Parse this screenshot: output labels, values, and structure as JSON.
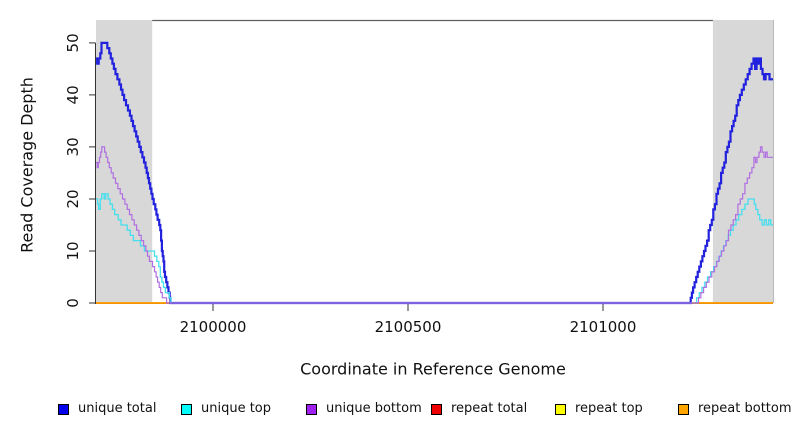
{
  "page": {
    "background": "#ffffff"
  },
  "chart_data": {
    "type": "line",
    "title": "",
    "xlabel": "Coordinate in Reference Genome",
    "ylabel": "Read Coverage Depth",
    "xlim": [
      2099700,
      2101436
    ],
    "ylim": [
      0,
      54.4
    ],
    "x_ticks": [
      2100000,
      2100500,
      2101000
    ],
    "x_tick_labels": [
      "2100000",
      "2100500",
      "2101000"
    ],
    "y_ticks": [
      0,
      10,
      20,
      30,
      40,
      50
    ],
    "y_tick_labels": [
      "0",
      "10",
      "20",
      "30",
      "40",
      "50"
    ],
    "grid": false,
    "legend_position": "bottom",
    "axis_color": "#333333",
    "frame_color": "#5f5f5f",
    "shade_color": "#d8d8d8",
    "shaded_regions": [
      {
        "x0": 2099700,
        "x1": 2099844
      },
      {
        "x0": 2101282,
        "x1": 2101436
      }
    ],
    "series": [
      {
        "name": "unique total",
        "color": "#2121de",
        "swatch": "#0000ee",
        "width": 2.2,
        "points": [
          [
            2099700,
            47
          ],
          [
            2099703,
            46
          ],
          [
            2099707,
            47
          ],
          [
            2099711,
            48
          ],
          [
            2099714,
            50
          ],
          [
            2099726,
            50
          ],
          [
            2099729,
            49
          ],
          [
            2099734,
            48
          ],
          [
            2099738,
            47
          ],
          [
            2099742,
            46
          ],
          [
            2099746,
            45
          ],
          [
            2099750,
            44
          ],
          [
            2099755,
            43
          ],
          [
            2099760,
            42
          ],
          [
            2099764,
            41
          ],
          [
            2099768,
            40
          ],
          [
            2099772,
            39
          ],
          [
            2099777,
            38
          ],
          [
            2099782,
            37
          ],
          [
            2099787,
            36
          ],
          [
            2099791,
            35
          ],
          [
            2099795,
            34
          ],
          [
            2099799,
            33
          ],
          [
            2099803,
            32
          ],
          [
            2099807,
            31
          ],
          [
            2099811,
            30
          ],
          [
            2099815,
            29
          ],
          [
            2099819,
            28
          ],
          [
            2099823,
            27
          ],
          [
            2099827,
            26
          ],
          [
            2099830,
            25
          ],
          [
            2099833,
            24
          ],
          [
            2099836,
            23
          ],
          [
            2099839,
            22
          ],
          [
            2099842,
            21
          ],
          [
            2099845,
            20
          ],
          [
            2099848,
            19
          ],
          [
            2099852,
            18
          ],
          [
            2099855,
            17
          ],
          [
            2099858,
            16
          ],
          [
            2099862,
            15
          ],
          [
            2099865,
            14
          ],
          [
            2099867,
            12
          ],
          [
            2099869,
            10
          ],
          [
            2099871,
            9
          ],
          [
            2099873,
            8
          ],
          [
            2099875,
            6
          ],
          [
            2099877,
            5
          ],
          [
            2099880,
            4
          ],
          [
            2099883,
            3
          ],
          [
            2099886,
            2
          ],
          [
            2099889,
            1
          ],
          [
            2099891,
            0
          ],
          [
            2101222,
            0
          ],
          [
            2101225,
            1
          ],
          [
            2101228,
            2
          ],
          [
            2101231,
            3
          ],
          [
            2101235,
            4
          ],
          [
            2101239,
            5
          ],
          [
            2101243,
            6
          ],
          [
            2101247,
            7
          ],
          [
            2101251,
            8
          ],
          [
            2101255,
            9
          ],
          [
            2101259,
            10
          ],
          [
            2101263,
            11
          ],
          [
            2101267,
            12
          ],
          [
            2101271,
            14
          ],
          [
            2101275,
            15
          ],
          [
            2101279,
            16
          ],
          [
            2101283,
            18
          ],
          [
            2101287,
            19
          ],
          [
            2101291,
            21
          ],
          [
            2101295,
            22
          ],
          [
            2101299,
            23
          ],
          [
            2101303,
            25
          ],
          [
            2101307,
            26
          ],
          [
            2101311,
            27
          ],
          [
            2101315,
            29
          ],
          [
            2101319,
            30
          ],
          [
            2101323,
            31
          ],
          [
            2101327,
            33
          ],
          [
            2101331,
            34
          ],
          [
            2101335,
            35
          ],
          [
            2101339,
            36
          ],
          [
            2101343,
            38
          ],
          [
            2101347,
            39
          ],
          [
            2101351,
            40
          ],
          [
            2101356,
            41
          ],
          [
            2101361,
            42
          ],
          [
            2101366,
            43
          ],
          [
            2101371,
            44
          ],
          [
            2101376,
            45
          ],
          [
            2101381,
            46
          ],
          [
            2101386,
            47
          ],
          [
            2101390,
            45
          ],
          [
            2101394,
            47
          ],
          [
            2101398,
            46
          ],
          [
            2101401,
            47
          ],
          [
            2101405,
            45
          ],
          [
            2101409,
            44
          ],
          [
            2101413,
            43
          ],
          [
            2101417,
            44
          ],
          [
            2101423,
            44
          ],
          [
            2101427,
            43
          ],
          [
            2101436,
            43
          ]
        ]
      },
      {
        "name": "unique top",
        "color": "#45dfee",
        "swatch": "#00ffff",
        "width": 1.3,
        "points": [
          [
            2099700,
            20
          ],
          [
            2099704,
            19
          ],
          [
            2099707,
            18
          ],
          [
            2099711,
            20
          ],
          [
            2099715,
            21
          ],
          [
            2099721,
            20
          ],
          [
            2099725,
            21
          ],
          [
            2099731,
            20
          ],
          [
            2099736,
            19
          ],
          [
            2099742,
            18
          ],
          [
            2099748,
            17
          ],
          [
            2099757,
            16
          ],
          [
            2099764,
            15
          ],
          [
            2099774,
            15
          ],
          [
            2099780,
            14
          ],
          [
            2099788,
            13
          ],
          [
            2099796,
            12
          ],
          [
            2099806,
            12
          ],
          [
            2099814,
            11
          ],
          [
            2099824,
            10
          ],
          [
            2099840,
            10
          ],
          [
            2099850,
            9
          ],
          [
            2099856,
            8
          ],
          [
            2099861,
            7
          ],
          [
            2099865,
            5
          ],
          [
            2099869,
            4
          ],
          [
            2099873,
            3
          ],
          [
            2099878,
            2
          ],
          [
            2099885,
            2
          ],
          [
            2099888,
            1
          ],
          [
            2099892,
            0
          ],
          [
            2101234,
            0
          ],
          [
            2101240,
            1
          ],
          [
            2101247,
            2
          ],
          [
            2101254,
            3
          ],
          [
            2101261,
            4
          ],
          [
            2101268,
            5
          ],
          [
            2101276,
            6
          ],
          [
            2101284,
            7
          ],
          [
            2101291,
            8
          ],
          [
            2101297,
            9
          ],
          [
            2101303,
            10
          ],
          [
            2101309,
            11
          ],
          [
            2101315,
            12
          ],
          [
            2101321,
            13
          ],
          [
            2101327,
            14
          ],
          [
            2101334,
            15
          ],
          [
            2101341,
            16
          ],
          [
            2101348,
            17
          ],
          [
            2101356,
            18
          ],
          [
            2101364,
            19
          ],
          [
            2101372,
            20
          ],
          [
            2101383,
            20
          ],
          [
            2101388,
            19
          ],
          [
            2101392,
            18
          ],
          [
            2101397,
            17
          ],
          [
            2101402,
            16
          ],
          [
            2101408,
            15
          ],
          [
            2101414,
            16
          ],
          [
            2101419,
            15
          ],
          [
            2101425,
            16
          ],
          [
            2101430,
            15
          ],
          [
            2101436,
            15
          ]
        ]
      },
      {
        "name": "unique bottom",
        "color": "#b06ee0",
        "swatch": "#a020f0",
        "width": 1.2,
        "points": [
          [
            2099700,
            27
          ],
          [
            2099703,
            26
          ],
          [
            2099706,
            27
          ],
          [
            2099709,
            28
          ],
          [
            2099712,
            29
          ],
          [
            2099715,
            30
          ],
          [
            2099722,
            29
          ],
          [
            2099726,
            28
          ],
          [
            2099730,
            27
          ],
          [
            2099734,
            26
          ],
          [
            2099739,
            25
          ],
          [
            2099744,
            24
          ],
          [
            2099750,
            23
          ],
          [
            2099756,
            22
          ],
          [
            2099762,
            21
          ],
          [
            2099768,
            20
          ],
          [
            2099774,
            19
          ],
          [
            2099780,
            18
          ],
          [
            2099786,
            17
          ],
          [
            2099792,
            16
          ],
          [
            2099798,
            15
          ],
          [
            2099804,
            14
          ],
          [
            2099810,
            13
          ],
          [
            2099816,
            12
          ],
          [
            2099822,
            11
          ],
          [
            2099828,
            10
          ],
          [
            2099832,
            9
          ],
          [
            2099837,
            8
          ],
          [
            2099845,
            7
          ],
          [
            2099850,
            6
          ],
          [
            2099854,
            5
          ],
          [
            2099858,
            4
          ],
          [
            2099862,
            3
          ],
          [
            2099866,
            2
          ],
          [
            2099870,
            1
          ],
          [
            2099877,
            1
          ],
          [
            2099881,
            0
          ],
          [
            2101239,
            0
          ],
          [
            2101245,
            1
          ],
          [
            2101251,
            2
          ],
          [
            2101258,
            3
          ],
          [
            2101265,
            4
          ],
          [
            2101272,
            5
          ],
          [
            2101279,
            6
          ],
          [
            2101286,
            7
          ],
          [
            2101292,
            8
          ],
          [
            2101298,
            9
          ],
          [
            2101304,
            10
          ],
          [
            2101310,
            11
          ],
          [
            2101316,
            12
          ],
          [
            2101322,
            14
          ],
          [
            2101328,
            15
          ],
          [
            2101334,
            16
          ],
          [
            2101340,
            17
          ],
          [
            2101346,
            19
          ],
          [
            2101352,
            20
          ],
          [
            2101358,
            21
          ],
          [
            2101364,
            23
          ],
          [
            2101370,
            24
          ],
          [
            2101376,
            25
          ],
          [
            2101382,
            26
          ],
          [
            2101387,
            28
          ],
          [
            2101391,
            27
          ],
          [
            2101395,
            28
          ],
          [
            2101400,
            29
          ],
          [
            2101404,
            30
          ],
          [
            2101408,
            29
          ],
          [
            2101413,
            28
          ],
          [
            2101417,
            29
          ],
          [
            2101421,
            28
          ],
          [
            2101436,
            28
          ]
        ]
      },
      {
        "name": "repeat total",
        "color": "#ee0000",
        "swatch": "#ee0000",
        "width": 1.2,
        "points": [
          [
            2099700,
            0
          ],
          [
            2101436,
            0
          ]
        ]
      },
      {
        "name": "repeat top",
        "color": "#ffff00",
        "swatch": "#ffff00",
        "width": 1.2,
        "points": [
          [
            2099700,
            0
          ],
          [
            2101436,
            0
          ]
        ]
      },
      {
        "name": "repeat bottom",
        "color": "#ff9d00",
        "swatch": "#ffa500",
        "width": 1.8,
        "points": [
          [
            2099700,
            0
          ],
          [
            2101436,
            0
          ]
        ]
      }
    ]
  },
  "legend": {
    "items": [
      {
        "label": "unique total"
      },
      {
        "label": "unique top"
      },
      {
        "label": "unique bottom"
      },
      {
        "label": "repeat total"
      },
      {
        "label": "repeat top"
      },
      {
        "label": "repeat bottom"
      }
    ]
  }
}
